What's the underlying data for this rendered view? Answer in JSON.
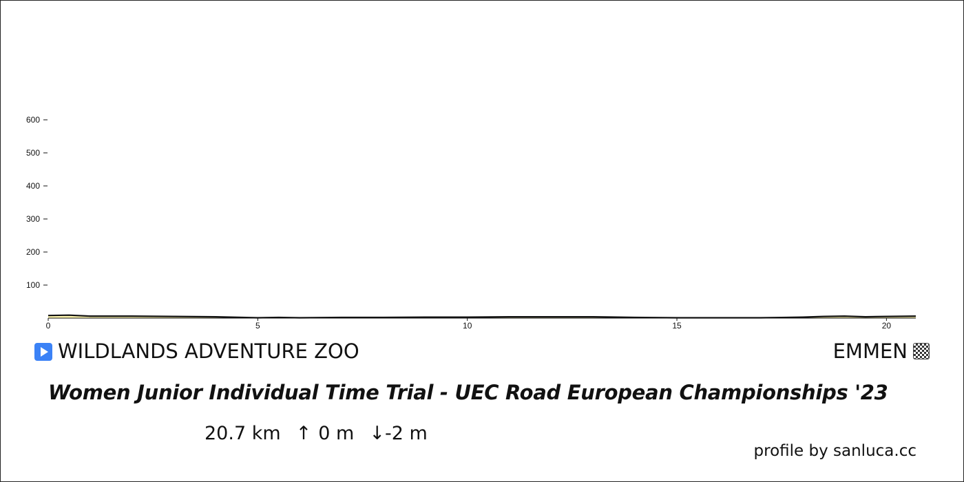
{
  "start_location": "WILDLANDS ADVENTURE ZOO",
  "finish_location": "EMMEN",
  "title": "Women Junior Individual Time Trial - UEC Road European Championships '23",
  "stats": {
    "distance": "20.7 km",
    "ascent_arrow": "↑",
    "ascent": "0 m",
    "descent_arrow": "↓",
    "descent": "-2 m"
  },
  "credit": "profile by sanluca.cc",
  "icons": {
    "start": "play-icon",
    "finish": "checkered-flag-icon"
  },
  "colors": {
    "fill": "#fff7b0",
    "line": "#111111",
    "start_icon": "#3b82f6"
  },
  "chart_data": {
    "type": "area",
    "title": "",
    "xlabel": "",
    "ylabel": "",
    "xlim": [
      0,
      20.7
    ],
    "ylim": [
      0,
      600
    ],
    "x_ticks": [
      0,
      5,
      10,
      15,
      20
    ],
    "y_ticks": [
      100,
      200,
      300,
      400,
      500,
      600
    ],
    "grid": false,
    "series": [
      {
        "x": [
          0,
          0.5,
          1,
          2,
          3,
          4,
          5,
          5.5,
          6,
          7,
          8,
          9,
          9.5,
          10,
          11,
          12,
          13,
          14,
          15,
          16,
          17,
          18,
          18.5,
          19,
          19.5,
          20,
          20.7
        ],
        "values": [
          8,
          9,
          6,
          6,
          5,
          4,
          1,
          2,
          1,
          2,
          2,
          3,
          3,
          3,
          4,
          4,
          4,
          2,
          1,
          1,
          1,
          3,
          5,
          6,
          4,
          5,
          6
        ]
      }
    ]
  }
}
